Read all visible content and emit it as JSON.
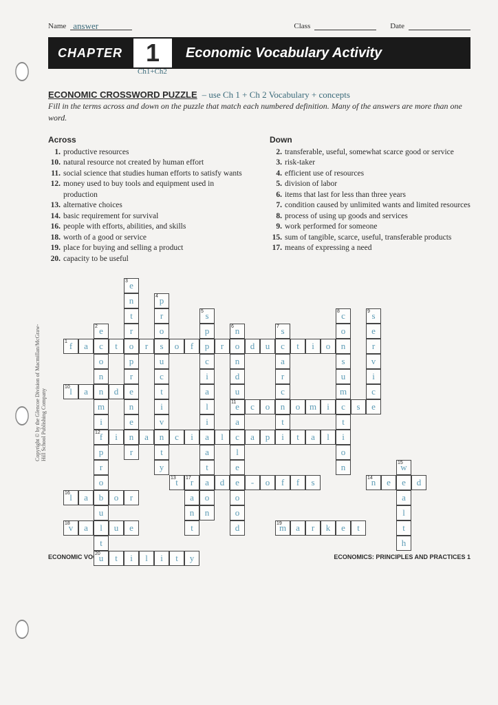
{
  "header": {
    "name_label": "Name",
    "name_value": "answer",
    "class_label": "Class",
    "date_label": "Date"
  },
  "chapter": {
    "label": "CHAPTER",
    "number": "1",
    "sub": "Ch1+Ch2",
    "title": "Economic Vocabulary Activity"
  },
  "puzzle": {
    "title": "ECONOMIC CROSSWORD PUZZLE",
    "annotation": "– use Ch 1 + Ch 2 Vocabulary + concepts",
    "instructions": "Fill in the terms across and down on the puzzle that match each numbered definition. Many of the answers are more than one word."
  },
  "across": {
    "heading": "Across",
    "clues": [
      {
        "n": "1.",
        "t": "productive resources"
      },
      {
        "n": "10.",
        "t": "natural resource not created by human effort"
      },
      {
        "n": "11.",
        "t": "social science that studies human efforts to satisfy wants"
      },
      {
        "n": "12.",
        "t": "money used to buy tools and equipment used in production"
      },
      {
        "n": "13.",
        "t": "alternative choices"
      },
      {
        "n": "14.",
        "t": "basic requirement for survival"
      },
      {
        "n": "16.",
        "t": "people with efforts, abilities, and skills"
      },
      {
        "n": "18.",
        "t": "worth of a good or service"
      },
      {
        "n": "19.",
        "t": "place for buying and selling a product"
      },
      {
        "n": "20.",
        "t": "capacity to be useful"
      }
    ]
  },
  "down": {
    "heading": "Down",
    "clues": [
      {
        "n": "2.",
        "t": "transferable, useful, somewhat scarce good or service"
      },
      {
        "n": "3.",
        "t": "risk-taker"
      },
      {
        "n": "4.",
        "t": "efficient use of resources"
      },
      {
        "n": "5.",
        "t": "division of labor"
      },
      {
        "n": "6.",
        "t": "items that last for less than three years"
      },
      {
        "n": "7.",
        "t": "condition caused by unlimited wants and limited resources"
      },
      {
        "n": "8.",
        "t": "process of using up goods and services"
      },
      {
        "n": "9.",
        "t": "work performed for someone"
      },
      {
        "n": "15.",
        "t": "sum of tangible, scarce, useful, transferable products"
      },
      {
        "n": "17.",
        "t": "means of expressing a need"
      }
    ]
  },
  "grid": {
    "cell_size": 22,
    "words": [
      {
        "n": "1",
        "r": 4,
        "c": 0,
        "d": "A",
        "a": "factorsofproduction"
      },
      {
        "n": "10",
        "r": 7,
        "c": 0,
        "d": "A",
        "a": "land"
      },
      {
        "n": "11",
        "r": 8,
        "c": 11,
        "d": "A",
        "a": "economics"
      },
      {
        "n": "12",
        "r": 10,
        "c": 2,
        "d": "A",
        "a": "financialcapital"
      },
      {
        "n": "13",
        "r": 13,
        "c": 7,
        "d": "A",
        "a": "trade-offs"
      },
      {
        "n": "14",
        "r": 13,
        "c": 20,
        "d": "A",
        "a": "need"
      },
      {
        "n": "16",
        "r": 14,
        "c": 0,
        "d": "A",
        "a": "labor"
      },
      {
        "n": "18",
        "r": 16,
        "c": 0,
        "d": "A",
        "a": "value"
      },
      {
        "n": "19",
        "r": 16,
        "c": 14,
        "d": "A",
        "a": "market"
      },
      {
        "n": "20",
        "r": 18,
        "c": 2,
        "d": "A",
        "a": "utility"
      },
      {
        "n": "2",
        "r": 3,
        "c": 2,
        "d": "D",
        "a": "economicproduct"
      },
      {
        "n": "3",
        "r": 0,
        "c": 4,
        "d": "D",
        "a": "entrepreneur"
      },
      {
        "n": "4",
        "r": 1,
        "c": 6,
        "d": "D",
        "a": "productivity"
      },
      {
        "n": "5",
        "r": 2,
        "c": 9,
        "d": "D",
        "a": "specialization"
      },
      {
        "n": "6",
        "r": 3,
        "c": 11,
        "d": "D",
        "a": "nondurablegood"
      },
      {
        "n": "7",
        "r": 3,
        "c": 14,
        "d": "D",
        "a": "scarcity"
      },
      {
        "n": "8",
        "r": 2,
        "c": 18,
        "d": "D",
        "a": "consumption"
      },
      {
        "n": "9",
        "r": 2,
        "c": 20,
        "d": "D",
        "a": "service"
      },
      {
        "n": "15",
        "r": 12,
        "c": 22,
        "d": "D",
        "a": "wealth"
      },
      {
        "n": "17",
        "r": 13,
        "c": 8,
        "d": "D",
        "a": "want"
      }
    ]
  },
  "footer": {
    "left": "ECONOMIC VOCABULARY ACTIVITIES",
    "right": "ECONOMICS: PRINCIPLES AND PRACTICES 1"
  },
  "copyright": "Copyright © by the Glencoe Division of Macmillan/McGraw-Hill School Publishing Company",
  "colors": {
    "page_bg": "#f4f3f1",
    "ink": "#2a2a2a",
    "bar_bg": "#1a1a1a",
    "bar_fg": "#ffffff",
    "hand_blue": "#5a9ab5",
    "hand_teal": "#3a6a7a",
    "cell_border": "#444444"
  }
}
